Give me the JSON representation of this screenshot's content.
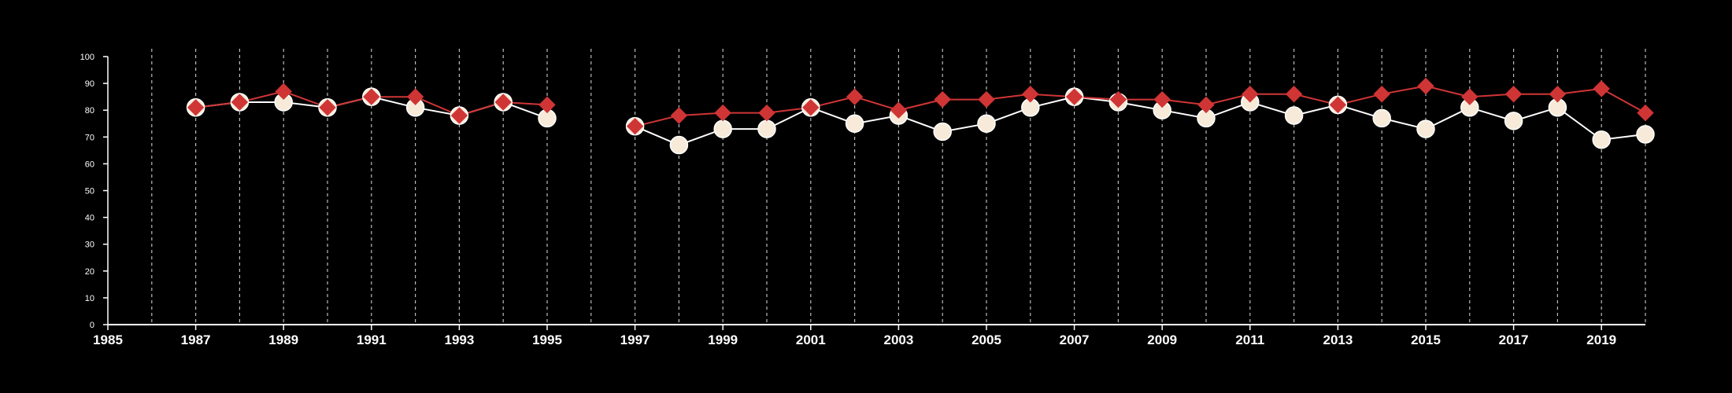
{
  "chart_data": {
    "type": "line",
    "title": "",
    "xlabel": "",
    "ylabel": "",
    "xlim": [
      1985,
      2020
    ],
    "ylim": [
      0,
      100
    ],
    "y_ticks": [
      0,
      10,
      20,
      30,
      40,
      50,
      60,
      70,
      80,
      90,
      100
    ],
    "x_ticks": [
      1985,
      1987,
      1989,
      1991,
      1993,
      1995,
      1997,
      1999,
      2001,
      2003,
      2005,
      2007,
      2009,
      2011,
      2013,
      2015,
      2017,
      2019
    ],
    "vertical_gridlines": "dashed, every year",
    "legend": "none",
    "x": [
      1987,
      1988,
      1989,
      1990,
      1991,
      1992,
      1993,
      1994,
      1995,
      1996,
      1997,
      1998,
      1999,
      2000,
      2001,
      2002,
      2003,
      2004,
      2005,
      2006,
      2007,
      2008,
      2009,
      2010,
      2011,
      2012,
      2013,
      2014,
      2015,
      2016,
      2017,
      2018,
      2019,
      2020
    ],
    "series": [
      {
        "marker": "circle",
        "color": "#ffffff",
        "fill": "#f7ead8",
        "values": [
          81,
          83,
          83,
          81,
          85,
          81,
          78,
          83,
          77,
          null,
          74,
          67,
          73,
          73,
          81,
          75,
          78,
          72,
          75,
          81,
          85,
          83,
          80,
          77,
          83,
          78,
          82,
          77,
          73,
          81,
          76,
          81,
          69,
          71
        ]
      },
      {
        "marker": "diamond",
        "color": "#d03535",
        "fill": "#d03535",
        "values": [
          81,
          83,
          87,
          81,
          85,
          85,
          78,
          83,
          82,
          null,
          74,
          78,
          79,
          79,
          81,
          85,
          80,
          84,
          84,
          86,
          85,
          84,
          84,
          82,
          86,
          86,
          82,
          86,
          89,
          85,
          86,
          86,
          88,
          79
        ]
      }
    ]
  }
}
